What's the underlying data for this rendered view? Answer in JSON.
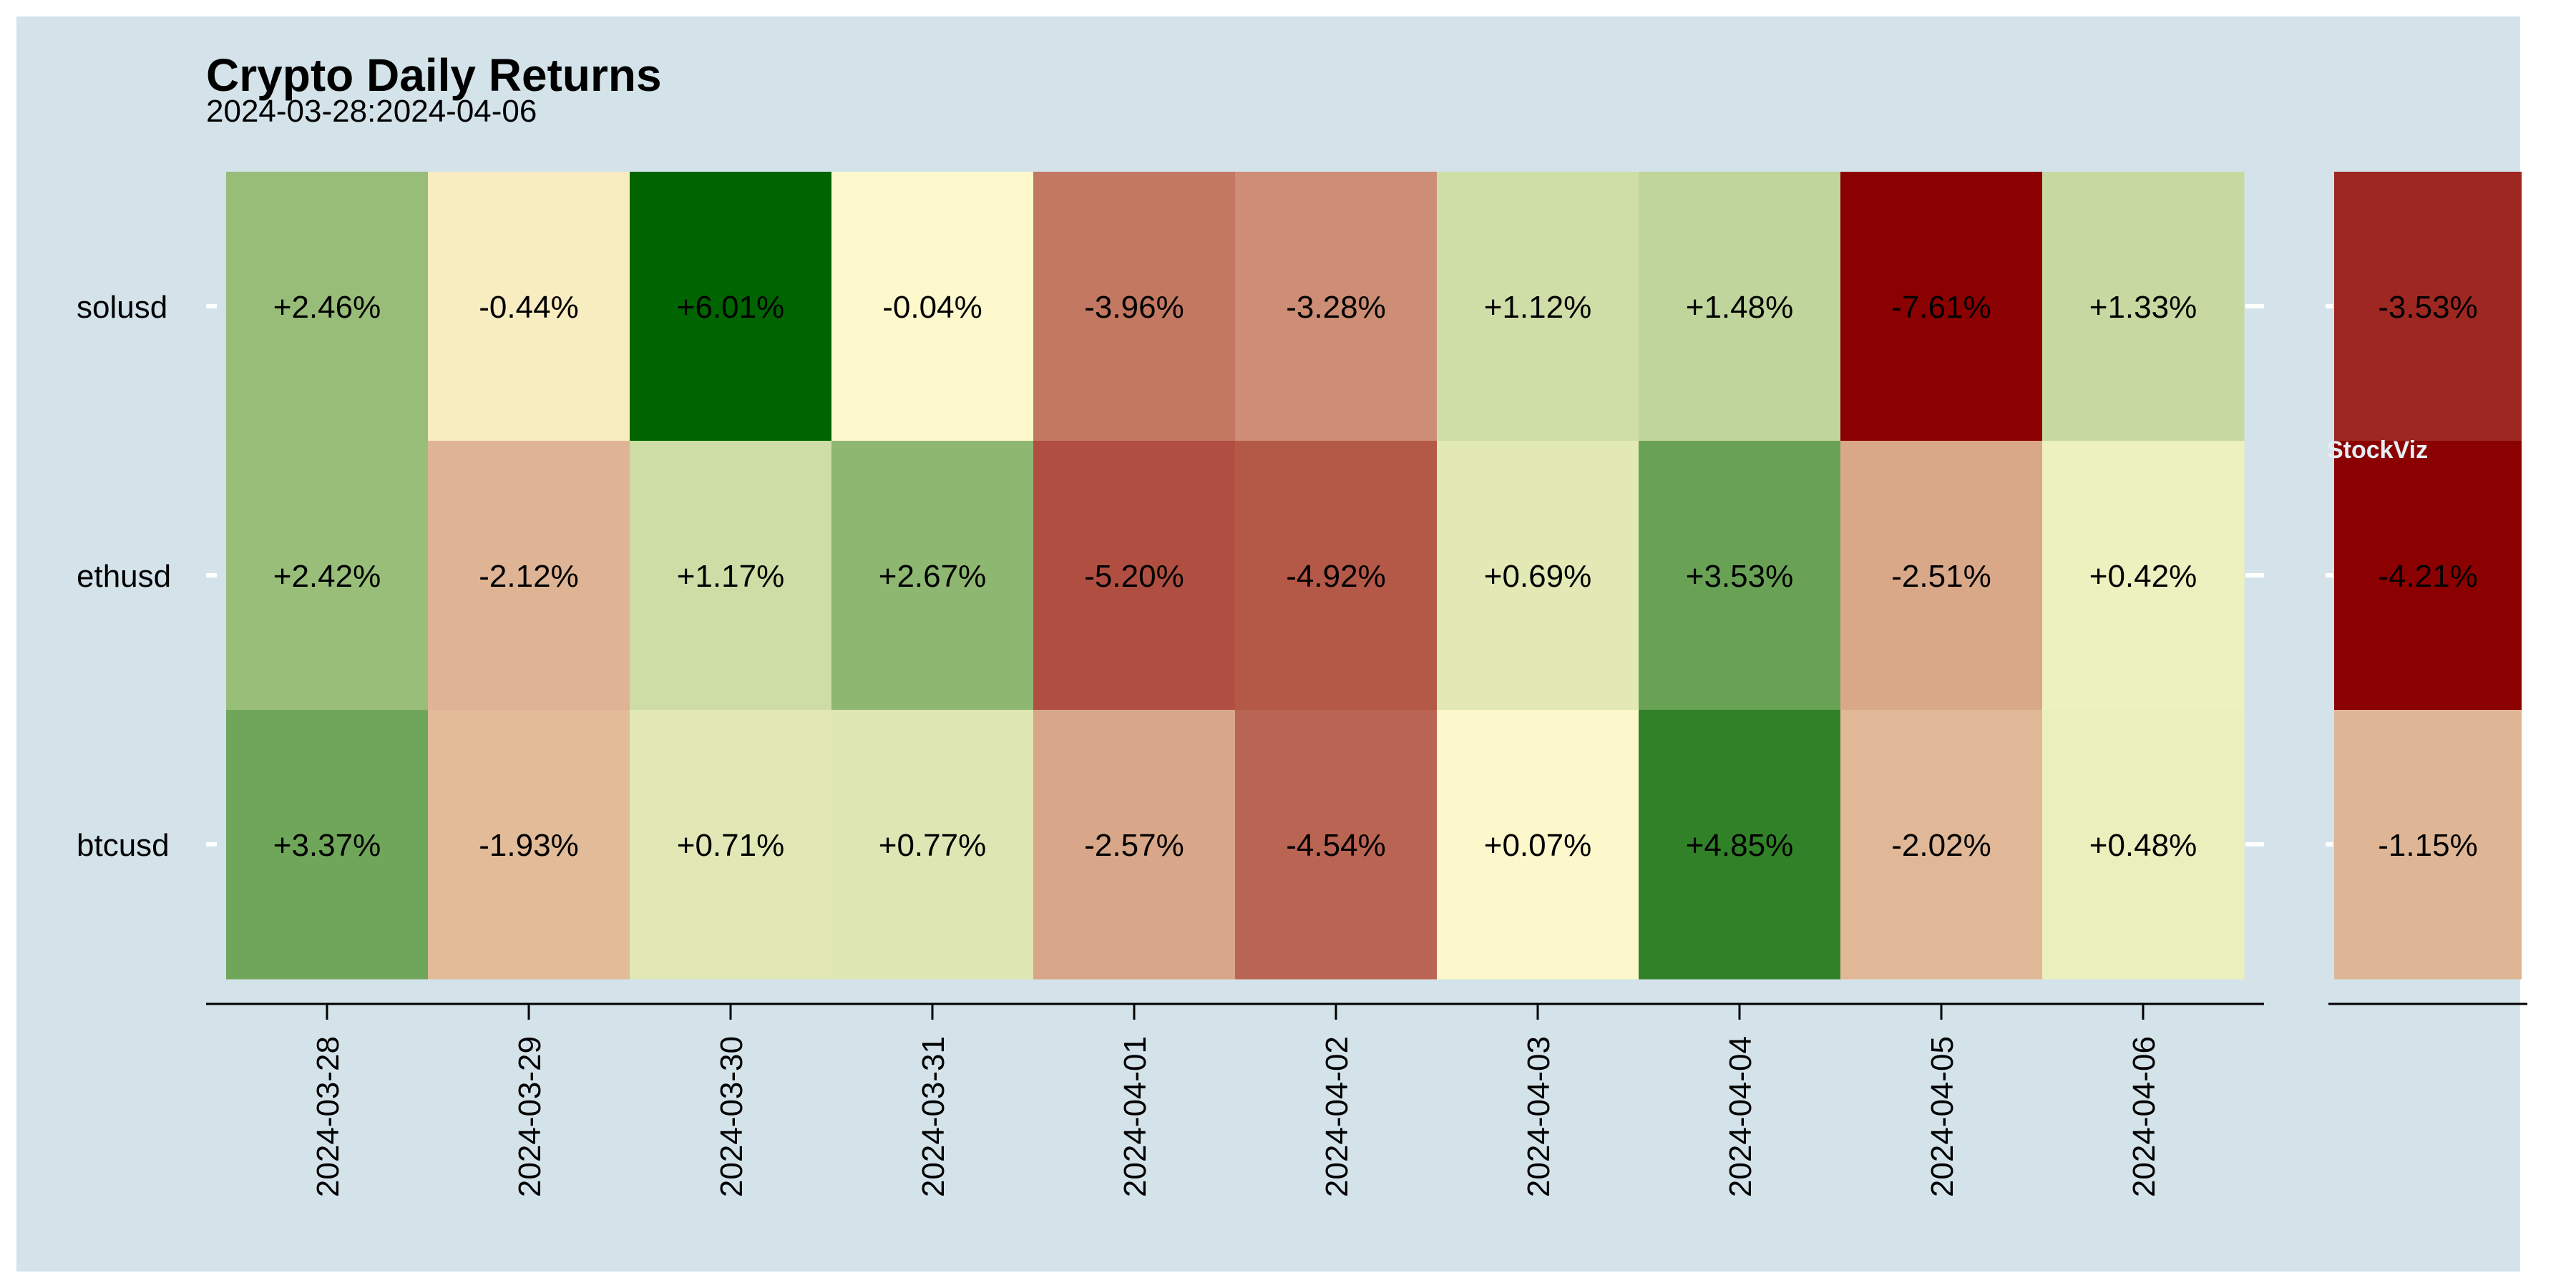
{
  "chart_data": {
    "type": "heatmap",
    "title": "Crypto Daily Returns",
    "subtitle": "2024-03-28:2024-04-06",
    "watermark": "StockViz",
    "x": [
      "2024-03-28",
      "2024-03-29",
      "2024-03-30",
      "2024-03-31",
      "2024-04-01",
      "2024-04-02",
      "2024-04-03",
      "2024-04-04",
      "2024-04-05",
      "2024-04-06"
    ],
    "y": [
      "solusd",
      "ethusd",
      "btcusd"
    ],
    "values": [
      [
        2.46,
        -0.44,
        6.01,
        -0.04,
        -3.96,
        -3.28,
        1.12,
        1.48,
        -7.61,
        1.33
      ],
      [
        2.42,
        -2.12,
        1.17,
        2.67,
        -5.2,
        -4.92,
        0.69,
        3.53,
        -2.51,
        0.42
      ],
      [
        3.37,
        -1.93,
        0.71,
        0.77,
        -2.57,
        -4.54,
        0.07,
        4.85,
        -2.02,
        0.48
      ]
    ],
    "labels": [
      [
        "+2.46%",
        "-0.44%",
        "+6.01%",
        "-0.04%",
        "-3.96%",
        "-3.28%",
        "+1.12%",
        "+1.48%",
        "-7.61%",
        "+1.33%"
      ],
      [
        "+2.42%",
        "-2.12%",
        "+1.17%",
        "+2.67%",
        "-5.20%",
        "-4.92%",
        "+0.69%",
        "+3.53%",
        "-2.51%",
        "+0.42%"
      ],
      [
        "+3.37%",
        "-1.93%",
        "+0.71%",
        "+0.77%",
        "-2.57%",
        "-4.54%",
        "+0.07%",
        "+4.85%",
        "-2.02%",
        "+0.48%"
      ]
    ],
    "summary": {
      "values": [
        -3.53,
        -4.21,
        -1.15
      ],
      "labels": [
        "-3.53%",
        "-4.21%",
        "-1.15%"
      ]
    },
    "colors": {
      "background": "#d4e3ea",
      "plot_bg": "#ffffff",
      "text": "#000000",
      "watermark": "#e6eef2",
      "low": "#8b0000",
      "mid": "#fffacd",
      "high": "#006400"
    }
  }
}
